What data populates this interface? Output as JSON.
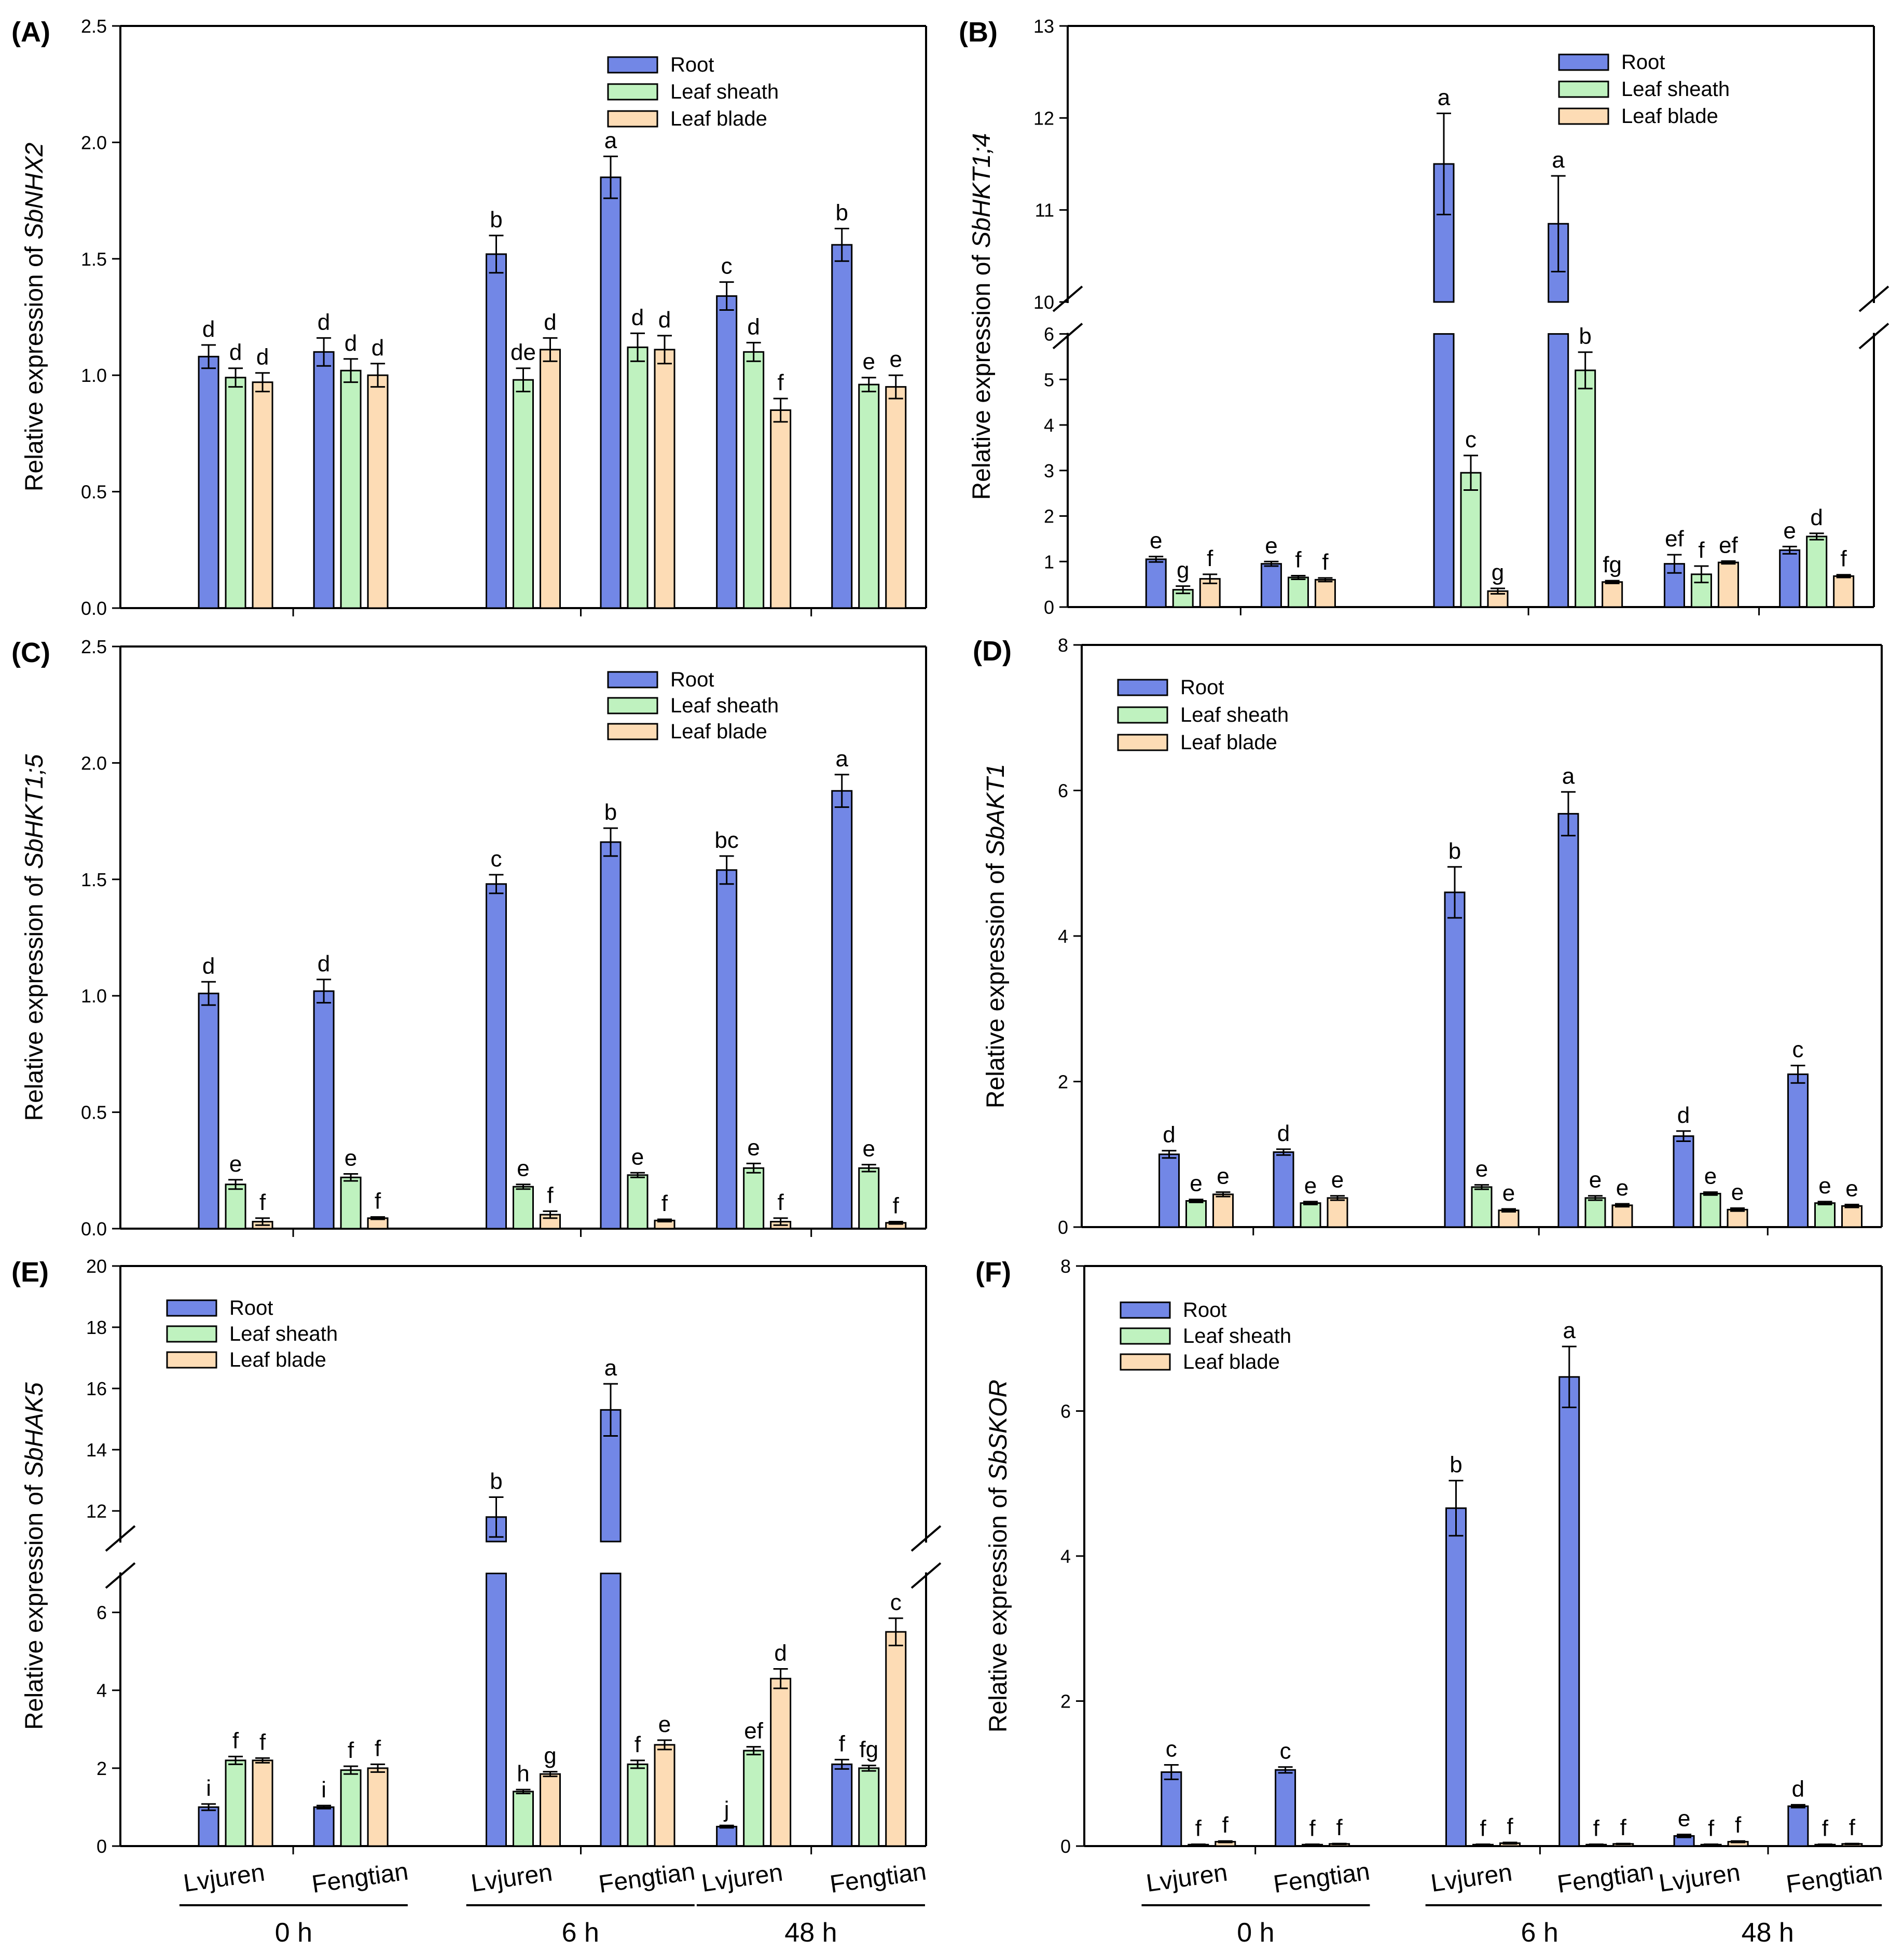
{
  "series_colors": {
    "Root": "#7287e6",
    "Leaf sheath": "#bff2bf",
    "Leaf blade": "#fddcb5"
  },
  "cultivars": [
    "Lvjuren",
    "Fengtian",
    "Lvjuren",
    "Fengtian",
    "Lvjuren",
    "Fengtian"
  ],
  "timepoints": [
    "0 h",
    "6 h",
    "48 h"
  ],
  "chart_data": [
    {
      "panel": "(A)",
      "type": "bar",
      "ylabel_prefix": "Relative expression of ",
      "gene": "SbNHX2",
      "ylim": [
        0,
        2.5
      ],
      "yticks": [
        "0.0",
        "0.5",
        "1.0",
        "1.5",
        "2.0",
        "2.5"
      ],
      "ytick_values": [
        0,
        0.5,
        1,
        1.5,
        2,
        2.5
      ],
      "legend": [
        "Root",
        "Leaf sheath",
        "Leaf blade"
      ],
      "series": [
        {
          "name": "Root",
          "values": [
            1.08,
            1.1,
            1.52,
            1.85,
            1.34,
            1.56
          ],
          "errors": [
            0.05,
            0.06,
            0.08,
            0.09,
            0.06,
            0.07
          ],
          "labels": [
            "d",
            "d",
            "b",
            "a",
            "c",
            "b"
          ]
        },
        {
          "name": "Leaf sheath",
          "values": [
            0.99,
            1.02,
            0.98,
            1.12,
            1.1,
            0.96
          ],
          "errors": [
            0.04,
            0.05,
            0.05,
            0.06,
            0.04,
            0.03
          ],
          "labels": [
            "d",
            "d",
            "de",
            "d",
            "d",
            "e"
          ]
        },
        {
          "name": "Leaf blade",
          "values": [
            0.97,
            1.0,
            1.11,
            1.11,
            0.85,
            0.95
          ],
          "errors": [
            0.04,
            0.05,
            0.05,
            0.06,
            0.05,
            0.05
          ],
          "labels": [
            "d",
            "d",
            "d",
            "d",
            "f",
            "e"
          ]
        }
      ]
    },
    {
      "panel": "(B)",
      "type": "bar",
      "ylabel_prefix": "Relative expression of ",
      "gene": "SbHKT1;4",
      "ylim": [
        0,
        13
      ],
      "axis_break": [
        6,
        10
      ],
      "yticks": [
        "0",
        "1",
        "2",
        "3",
        "4",
        "5",
        "6",
        "10",
        "11",
        "12",
        "13"
      ],
      "ytick_values": [
        0,
        1,
        2,
        3,
        4,
        5,
        6,
        10,
        11,
        12,
        13
      ],
      "legend": [
        "Root",
        "Leaf sheath",
        "Leaf blade"
      ],
      "series": [
        {
          "name": "Root",
          "values": [
            1.05,
            0.95,
            11.5,
            10.85,
            0.95,
            1.25
          ],
          "errors": [
            0.06,
            0.05,
            0.55,
            0.52,
            0.2,
            0.08
          ],
          "labels": [
            "e",
            "e",
            "a",
            "a",
            "ef",
            "e"
          ]
        },
        {
          "name": "Leaf sheath",
          "values": [
            0.38,
            0.65,
            2.95,
            5.2,
            0.72,
            1.55
          ],
          "errors": [
            0.08,
            0.04,
            0.38,
            0.4,
            0.18,
            0.07
          ],
          "labels": [
            "g",
            "f",
            "c",
            "b",
            "f",
            "d"
          ]
        },
        {
          "name": "Leaf blade",
          "values": [
            0.62,
            0.6,
            0.35,
            0.55,
            0.98,
            0.68
          ],
          "errors": [
            0.1,
            0.04,
            0.06,
            0.03,
            0.03,
            0.03
          ],
          "labels": [
            "f",
            "f",
            "g",
            "fg",
            "ef",
            "f"
          ]
        }
      ]
    },
    {
      "panel": "(C)",
      "type": "bar",
      "ylabel_prefix": "Relative expression of ",
      "gene": "SbHKT1;5",
      "ylim": [
        0,
        2.5
      ],
      "yticks": [
        "0.0",
        "0.5",
        "1.0",
        "1.5",
        "2.0",
        "2.5"
      ],
      "ytick_values": [
        0,
        0.5,
        1,
        1.5,
        2,
        2.5
      ],
      "legend": [
        "Root",
        "Leaf sheath",
        "Leaf blade"
      ],
      "series": [
        {
          "name": "Root",
          "values": [
            1.01,
            1.02,
            1.48,
            1.66,
            1.54,
            1.88
          ],
          "errors": [
            0.05,
            0.05,
            0.04,
            0.06,
            0.06,
            0.07
          ],
          "labels": [
            "d",
            "d",
            "c",
            "b",
            "bc",
            "a"
          ]
        },
        {
          "name": "Leaf sheath",
          "values": [
            0.19,
            0.22,
            0.18,
            0.23,
            0.26,
            0.26
          ],
          "errors": [
            0.02,
            0.015,
            0.01,
            0.01,
            0.02,
            0.015
          ],
          "labels": [
            "e",
            "e",
            "e",
            "e",
            "e",
            "e"
          ]
        },
        {
          "name": "Leaf blade",
          "values": [
            0.03,
            0.045,
            0.06,
            0.035,
            0.03,
            0.025
          ],
          "errors": [
            0.015,
            0.005,
            0.015,
            0.005,
            0.015,
            0.005
          ],
          "labels": [
            "f",
            "f",
            "f",
            "f",
            "f",
            "f"
          ]
        }
      ]
    },
    {
      "panel": "(D)",
      "type": "bar",
      "ylabel_prefix": "Relative expression of ",
      "gene": "SbAKT1",
      "ylim": [
        0,
        8
      ],
      "yticks": [
        "0",
        "2",
        "4",
        "6",
        "8"
      ],
      "ytick_values": [
        0,
        2,
        4,
        6,
        8
      ],
      "legend": [
        "Root",
        "Leaf sheath",
        "Leaf blade"
      ],
      "series": [
        {
          "name": "Root",
          "values": [
            1.0,
            1.03,
            4.6,
            5.68,
            1.25,
            2.1
          ],
          "errors": [
            0.05,
            0.04,
            0.35,
            0.3,
            0.07,
            0.12
          ],
          "labels": [
            "d",
            "d",
            "b",
            "a",
            "d",
            "c"
          ]
        },
        {
          "name": "Leaf sheath",
          "values": [
            0.36,
            0.33,
            0.55,
            0.4,
            0.46,
            0.33
          ],
          "errors": [
            0.02,
            0.02,
            0.03,
            0.03,
            0.02,
            0.02
          ],
          "labels": [
            "e",
            "e",
            "e",
            "e",
            "e",
            "e"
          ]
        },
        {
          "name": "Leaf blade",
          "values": [
            0.45,
            0.4,
            0.23,
            0.3,
            0.24,
            0.29
          ],
          "errors": [
            0.03,
            0.03,
            0.02,
            0.02,
            0.02,
            0.02
          ],
          "labels": [
            "e",
            "e",
            "e",
            "e",
            "e",
            "e"
          ]
        }
      ]
    },
    {
      "panel": "(E)",
      "type": "bar",
      "ylabel_prefix": "Relative expression of ",
      "gene": "SbHAK5",
      "ylim": [
        0,
        20
      ],
      "axis_break": [
        7,
        11
      ],
      "yticks": [
        "0",
        "2",
        "4",
        "6",
        "12",
        "14",
        "16",
        "18",
        "20"
      ],
      "ytick_values": [
        0,
        2,
        4,
        6,
        12,
        14,
        16,
        18,
        20
      ],
      "legend": [
        "Root",
        "Leaf sheath",
        "Leaf blade"
      ],
      "series": [
        {
          "name": "Root",
          "values": [
            1.0,
            1.0,
            11.8,
            15.3,
            0.5,
            2.1
          ],
          "errors": [
            0.08,
            0.04,
            0.65,
            0.85,
            0.03,
            0.12
          ],
          "labels": [
            "i",
            "i",
            "b",
            "a",
            "j",
            "f"
          ]
        },
        {
          "name": "Leaf sheath",
          "values": [
            2.2,
            1.95,
            1.4,
            2.1,
            2.45,
            2.0
          ],
          "errors": [
            0.1,
            0.1,
            0.05,
            0.1,
            0.1,
            0.07
          ],
          "labels": [
            "f",
            "f",
            "h",
            "f",
            "ef",
            "fg"
          ]
        },
        {
          "name": "Leaf blade",
          "values": [
            2.2,
            2.0,
            1.85,
            2.6,
            4.3,
            5.5
          ],
          "errors": [
            0.06,
            0.1,
            0.06,
            0.12,
            0.25,
            0.35
          ],
          "labels": [
            "f",
            "f",
            "g",
            "e",
            "d",
            "c"
          ]
        }
      ]
    },
    {
      "panel": "(F)",
      "type": "bar",
      "ylabel_prefix": "Relative expression of ",
      "gene": "SbSKOR",
      "ylim": [
        0,
        8
      ],
      "yticks": [
        "0",
        "2",
        "4",
        "6",
        "8"
      ],
      "ytick_values": [
        0,
        2,
        4,
        6,
        8
      ],
      "legend": [
        "Root",
        "Leaf sheath",
        "Leaf blade"
      ],
      "series": [
        {
          "name": "Root",
          "values": [
            1.02,
            1.05,
            4.66,
            6.47,
            0.14,
            0.55
          ],
          "errors": [
            0.1,
            0.04,
            0.38,
            0.42,
            0.02,
            0.02
          ],
          "labels": [
            "c",
            "c",
            "b",
            "a",
            "e",
            "d"
          ]
        },
        {
          "name": "Leaf sheath",
          "values": [
            0.02,
            0.02,
            0.02,
            0.02,
            0.02,
            0.02
          ],
          "errors": [
            0.005,
            0.005,
            0.005,
            0.005,
            0.005,
            0.005
          ],
          "labels": [
            "f",
            "f",
            "f",
            "f",
            "f",
            "f"
          ]
        },
        {
          "name": "Leaf blade",
          "values": [
            0.06,
            0.03,
            0.04,
            0.03,
            0.06,
            0.03
          ],
          "errors": [
            0.01,
            0.005,
            0.01,
            0.005,
            0.01,
            0.005
          ],
          "labels": [
            "f",
            "f",
            "f",
            "f",
            "f",
            "f"
          ]
        }
      ]
    }
  ]
}
